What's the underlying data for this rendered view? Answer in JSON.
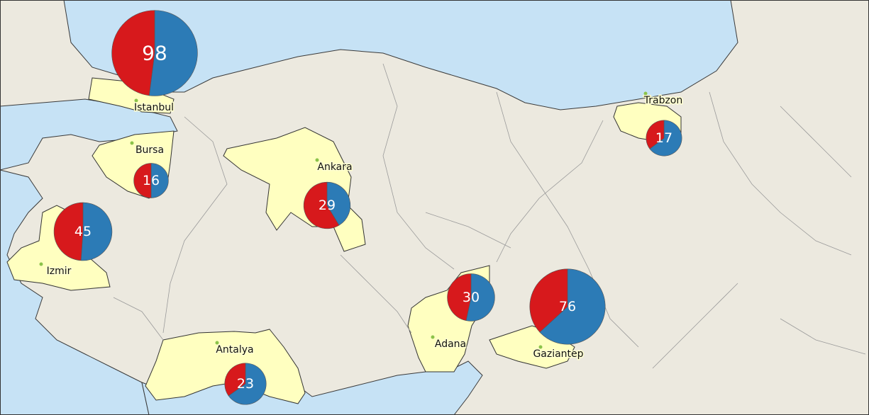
{
  "segment_colors": [
    "#d7191c",
    "#2c7bb6"
  ],
  "cities": [
    {
      "name": "Istanbul",
      "total": 98,
      "segments": [
        47,
        51
      ]
    },
    {
      "name": "Bursa",
      "total": 16,
      "segments": [
        8,
        8
      ]
    },
    {
      "name": "Izmir",
      "total": 45,
      "segments": [
        22,
        23
      ]
    },
    {
      "name": "Ankara",
      "total": 29,
      "segments": [
        17,
        12
      ]
    },
    {
      "name": "Trabzon",
      "total": 17,
      "segments": [
        6,
        11
      ]
    },
    {
      "name": "Adana",
      "total": 30,
      "segments": [
        14,
        16
      ]
    },
    {
      "name": "Gaziantep",
      "total": 76,
      "segments": [
        28,
        48
      ]
    },
    {
      "name": "Antalya",
      "total": 23,
      "segments": [
        8,
        15
      ]
    }
  ]
}
